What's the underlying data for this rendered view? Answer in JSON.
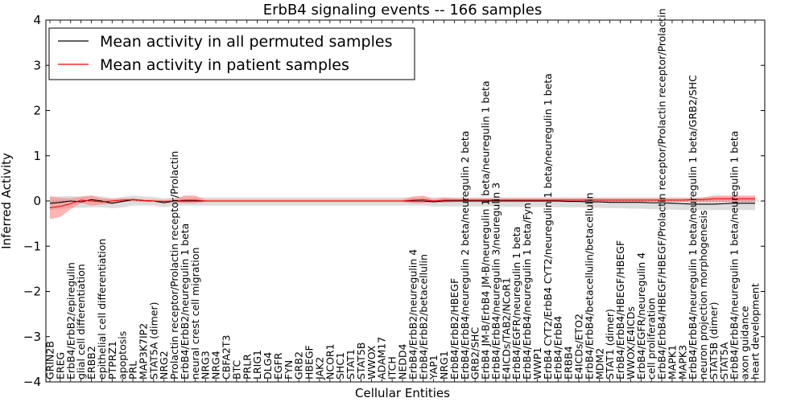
{
  "chart_data": {
    "type": "line",
    "title": "ErbB4 signaling events -- 166 samples",
    "xlabel": "Cellular Entities",
    "ylabel": "Inferred Activity",
    "ylim": [
      -4,
      4
    ],
    "yticks": [
      "−4",
      "−3",
      "−2",
      "−1",
      "0",
      "1",
      "2",
      "3",
      "4"
    ],
    "legend_position": "top-left",
    "colors": {
      "permuted_line": "#000000",
      "patient_line": "#ff0000",
      "permuted_band": "#bbbbbb",
      "patient_band": "#ff8080"
    },
    "categories": [
      "GRIN2B",
      "EREG",
      "ErbB4/ErbB2/epiregulin",
      "glial cell differentiation",
      "ERBB2",
      "epithelial cell differentiation",
      "PTPRZ1",
      "apoptosis",
      "PRL",
      "MAP3K7IP2",
      "STAT5A (dimer)",
      "NRG2",
      "Prolactin receptor/Prolactin receptor/Prolactin",
      "ErbB4/ErbB2/neuregulin 1 beta",
      "neural crest cell migration",
      "NRG3",
      "NRG4",
      "CBFA2T3",
      "BTC",
      "PRLR",
      "LRIG1",
      "DLG4",
      "EGFR",
      "FYN",
      "GRB2",
      "HBEGF",
      "JAK2",
      "NCOR1",
      "SHC1",
      "STAT1",
      "STAT5B",
      "WWOX",
      "ADAM17",
      "ITCH",
      "NEDD4",
      "ErbB4/ErbB2/neuregulin 4",
      "ErbB4/ErbB2/betacellulin",
      "YAP1",
      "NRG1",
      "ErbB4/ErbB2/HBEGF",
      "ErbB4/ErbB4/neuregulin 2 beta/neuregulin 2 beta",
      "GRB2/SHC",
      "ErbB4 JM-B/ErbB4 JM-B/neuregulin 1 beta/neuregulin 1 beta",
      "ErbB4/ErbB4/neuregulin 3/neuregulin 3",
      "E4ICDs/TAB2/NCoR1",
      "ErbB4/EGFR/neuregulin 1 beta",
      "ErbB4/ErbB4/neuregulin 1 beta/Fyn",
      "WWP1",
      "ErbB4 CYT2/ErbB4 CYT2/neuregulin 1 beta/neuregulin 1 beta",
      "ErbB4/ErbB4",
      "ERBB4",
      "E4ICDs/ETO2",
      "ErbB4/ErbB4/betacellulin/betacellulin",
      "MDM2",
      "STAT1 (dimer)",
      "ErbB4/ErbB4/HBEGF/HBEGF",
      "WWOX/E4ICDs",
      "ErbB4/EGFR/neuregulin 4",
      "cell proliferation",
      "ErbB4/ErbB4/HBEGF/HBEGF/Prolactin receptor/Prolactin receptor/Prolactin",
      "MAPK1",
      "MAPK3",
      "ErbB4/ErbB4/neuregulin 1 beta/neuregulin 1 beta/GRB2/SHC",
      "neuron projection morphogenesis",
      "STAT5B (dimer)",
      "STAT5A",
      "ErbB4/ErbB4/neuregulin 1 beta/neuregulin 1 beta",
      "axon guidance",
      "heart development"
    ],
    "series": [
      {
        "name": "Mean activity in all permuted samples",
        "values": [
          -0.05,
          -0.03,
          0.0,
          -0.02,
          0.03,
          0.0,
          -0.05,
          -0.01,
          0.03,
          0.01,
          0.0,
          -0.04,
          0.0,
          0.0,
          0.0,
          0.0,
          0.0,
          0.0,
          0.0,
          0.0,
          0.0,
          0.0,
          0.0,
          0.0,
          0.0,
          0.0,
          0.0,
          0.0,
          0.0,
          0.0,
          0.0,
          0.0,
          0.0,
          0.0,
          0.0,
          0.0,
          0.0,
          -0.02,
          0.0,
          0.0,
          0.0,
          0.0,
          0.0,
          0.0,
          0.0,
          0.0,
          0.0,
          0.0,
          0.0,
          0.0,
          -0.01,
          -0.01,
          -0.02,
          -0.02,
          -0.03,
          -0.03,
          -0.03,
          -0.03,
          -0.04,
          -0.04,
          -0.05,
          -0.06,
          -0.07,
          -0.07,
          -0.07,
          -0.06,
          -0.05,
          -0.05,
          -0.05
        ],
        "band_low": [
          -0.2,
          -0.18,
          -0.15,
          -0.15,
          -0.14,
          -0.14,
          -0.16,
          -0.14,
          -0.1,
          -0.1,
          -0.1,
          -0.14,
          -0.1,
          -0.1,
          -0.1,
          -0.1,
          -0.1,
          -0.1,
          -0.1,
          -0.1,
          -0.1,
          -0.1,
          -0.1,
          -0.1,
          -0.1,
          -0.1,
          -0.1,
          -0.1,
          -0.1,
          -0.1,
          -0.1,
          -0.1,
          -0.1,
          -0.1,
          -0.1,
          -0.1,
          -0.1,
          -0.12,
          -0.12,
          -0.12,
          -0.12,
          -0.12,
          -0.12,
          -0.12,
          -0.13,
          -0.13,
          -0.13,
          -0.13,
          -0.13,
          -0.14,
          -0.14,
          -0.14,
          -0.15,
          -0.15,
          -0.16,
          -0.16,
          -0.17,
          -0.17,
          -0.18,
          -0.18,
          -0.19,
          -0.2,
          -0.2,
          -0.2,
          -0.2,
          -0.2,
          -0.2,
          -0.2,
          -0.2
        ],
        "band_high": [
          0.1,
          0.1,
          0.11,
          0.09,
          0.12,
          0.1,
          0.06,
          0.09,
          0.12,
          0.1,
          0.09,
          0.06,
          0.08,
          0.08,
          0.08,
          0.08,
          0.08,
          0.08,
          0.08,
          0.08,
          0.08,
          0.08,
          0.08,
          0.08,
          0.08,
          0.08,
          0.08,
          0.08,
          0.08,
          0.08,
          0.08,
          0.08,
          0.08,
          0.08,
          0.08,
          0.08,
          0.08,
          0.08,
          0.08,
          0.08,
          0.08,
          0.08,
          0.08,
          0.08,
          0.08,
          0.08,
          0.08,
          0.08,
          0.08,
          0.08,
          0.08,
          0.08,
          0.08,
          0.08,
          0.08,
          0.08,
          0.08,
          0.08,
          0.08,
          0.08,
          0.08,
          0.08,
          0.08,
          0.08,
          0.08,
          0.08,
          0.08,
          0.08,
          0.08
        ]
      },
      {
        "name": "Mean activity in patient samples",
        "values": [
          -0.15,
          -0.12,
          -0.06,
          0.02,
          0.0,
          -0.02,
          0.0,
          0.02,
          0.03,
          0.01,
          0.0,
          -0.01,
          0.0,
          0.02,
          0.02,
          0.0,
          0.0,
          0.0,
          0.0,
          0.0,
          0.0,
          0.0,
          0.0,
          0.0,
          0.0,
          0.0,
          0.0,
          0.0,
          0.0,
          0.0,
          0.0,
          0.0,
          0.0,
          0.0,
          0.0,
          0.02,
          0.03,
          0.0,
          0.02,
          0.02,
          0.02,
          0.02,
          0.02,
          0.02,
          0.02,
          0.02,
          0.02,
          0.02,
          0.02,
          0.02,
          0.02,
          0.02,
          0.02,
          0.02,
          0.02,
          0.02,
          0.02,
          0.02,
          0.02,
          0.02,
          0.02,
          0.02,
          0.03,
          0.03,
          0.05,
          0.05,
          0.05,
          0.05,
          0.05
        ],
        "band_low": [
          -0.4,
          -0.35,
          -0.18,
          -0.05,
          -0.1,
          -0.08,
          -0.06,
          -0.02,
          0.0,
          -0.02,
          -0.02,
          -0.05,
          -0.03,
          -0.05,
          -0.05,
          -0.02,
          -0.02,
          -0.02,
          -0.02,
          -0.02,
          -0.02,
          -0.02,
          -0.02,
          -0.02,
          -0.02,
          -0.02,
          -0.02,
          -0.02,
          -0.02,
          -0.02,
          -0.02,
          -0.02,
          -0.02,
          -0.02,
          -0.02,
          -0.05,
          -0.05,
          -0.02,
          -0.04,
          -0.02,
          -0.02,
          -0.02,
          -0.02,
          -0.02,
          -0.02,
          -0.02,
          -0.02,
          -0.02,
          -0.02,
          -0.02,
          -0.02,
          -0.02,
          -0.02,
          -0.02,
          -0.02,
          -0.02,
          -0.02,
          -0.02,
          -0.02,
          -0.02,
          -0.02,
          -0.02,
          -0.02,
          -0.02,
          -0.02,
          -0.02,
          -0.02,
          -0.02,
          -0.02
        ],
        "band_high": [
          0.1,
          0.07,
          0.06,
          0.1,
          0.12,
          0.06,
          0.05,
          0.06,
          0.06,
          0.04,
          0.03,
          0.02,
          0.04,
          0.12,
          0.12,
          0.03,
          0.03,
          0.03,
          0.03,
          0.03,
          0.03,
          0.03,
          0.03,
          0.03,
          0.03,
          0.03,
          0.03,
          0.03,
          0.03,
          0.03,
          0.03,
          0.03,
          0.03,
          0.03,
          0.03,
          0.1,
          0.12,
          0.04,
          0.08,
          0.06,
          0.06,
          0.06,
          0.06,
          0.06,
          0.06,
          0.06,
          0.06,
          0.06,
          0.06,
          0.06,
          0.06,
          0.06,
          0.06,
          0.06,
          0.06,
          0.06,
          0.06,
          0.06,
          0.06,
          0.06,
          0.06,
          0.06,
          0.06,
          0.08,
          0.12,
          0.12,
          0.12,
          0.12,
          0.12
        ]
      }
    ]
  }
}
